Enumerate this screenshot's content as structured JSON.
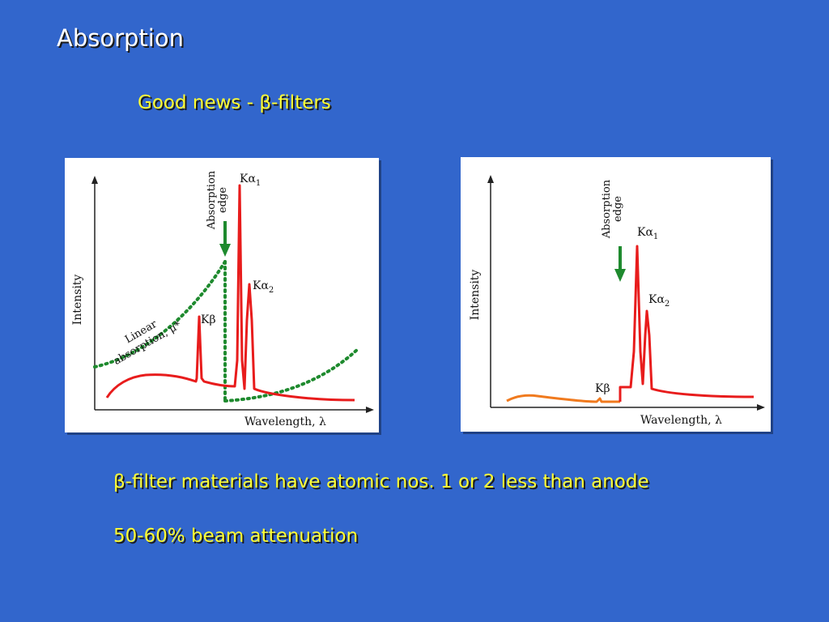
{
  "slide": {
    "title": "Absorption",
    "subtitle": "Good news - β-filters",
    "bullets": [
      "β-filter materials have atomic nos. 1 or 2 less than anode",
      "50-60% beam attenuation"
    ]
  },
  "diagrams": {
    "left": {
      "y_axis_label": "Intensity",
      "x_axis_label": "Wavelength, λ",
      "edge_label_line1": "Absorption",
      "edge_label_line2": "edge",
      "peak_ka1": "Kα",
      "peak_ka1_sub": "1",
      "peak_ka2": "Kα",
      "peak_ka2_sub": "2",
      "peak_kb": "Kβ",
      "curve_label_line1": "Linear",
      "curve_label_line2": "absorption, μ*"
    },
    "right": {
      "y_axis_label": "Intensity",
      "x_axis_label": "Wavelength, λ",
      "edge_label_line1": "Absorption",
      "edge_label_line2": "edge",
      "peak_ka1": "Kα",
      "peak_ka1_sub": "1",
      "peak_ka2": "Kα",
      "peak_ka2_sub": "2",
      "peak_kb": "Kβ"
    }
  },
  "colors": {
    "background": "#3266cc",
    "title": "#ffffff",
    "text": "#ffff33",
    "spectrum": "#e81c1c",
    "filtered_spectrum_low": "#f07a1e",
    "absorption_curve": "#1e8a2e",
    "edge_arrow": "#1e8a2e"
  }
}
